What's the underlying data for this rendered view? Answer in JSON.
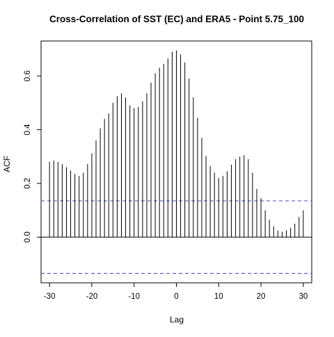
{
  "chart_data": {
    "type": "bar",
    "title": "Cross-Correlation of SST (EC) and ERA5 - Point 5.75_100",
    "xlabel": "Lag",
    "ylabel": "ACF",
    "xlim": [
      -32,
      32
    ],
    "ylim": [
      -0.17,
      0.73
    ],
    "xticks": [
      -30,
      -20,
      -10,
      0,
      10,
      20,
      30
    ],
    "yticks": [
      0.0,
      0.2,
      0.4,
      0.6
    ],
    "ci_bound": 0.135,
    "ci_color": "#5b5bd6",
    "bar_color": "#000000",
    "lags": [
      -30,
      -29,
      -28,
      -27,
      -26,
      -25,
      -24,
      -23,
      -22,
      -21,
      -20,
      -19,
      -18,
      -17,
      -16,
      -15,
      -14,
      -13,
      -12,
      -11,
      -10,
      -9,
      -8,
      -7,
      -6,
      -5,
      -4,
      -3,
      -2,
      -1,
      0,
      1,
      2,
      3,
      4,
      5,
      6,
      7,
      8,
      9,
      10,
      11,
      12,
      13,
      14,
      15,
      16,
      17,
      18,
      19,
      20,
      21,
      22,
      23,
      24,
      25,
      26,
      27,
      28,
      29,
      30
    ],
    "values": [
      0.28,
      0.285,
      0.28,
      0.272,
      0.26,
      0.248,
      0.235,
      0.228,
      0.24,
      0.272,
      0.312,
      0.36,
      0.405,
      0.44,
      0.46,
      0.5,
      0.525,
      0.535,
      0.52,
      0.49,
      0.48,
      0.485,
      0.505,
      0.535,
      0.575,
      0.61,
      0.63,
      0.645,
      0.665,
      0.69,
      0.695,
      0.68,
      0.65,
      0.59,
      0.52,
      0.445,
      0.37,
      0.302,
      0.265,
      0.24,
      0.22,
      0.228,
      0.245,
      0.27,
      0.29,
      0.3,
      0.305,
      0.29,
      0.24,
      0.18,
      0.145,
      0.1,
      0.065,
      0.04,
      0.025,
      0.02,
      0.025,
      0.035,
      0.05,
      0.075,
      0.1
    ]
  }
}
